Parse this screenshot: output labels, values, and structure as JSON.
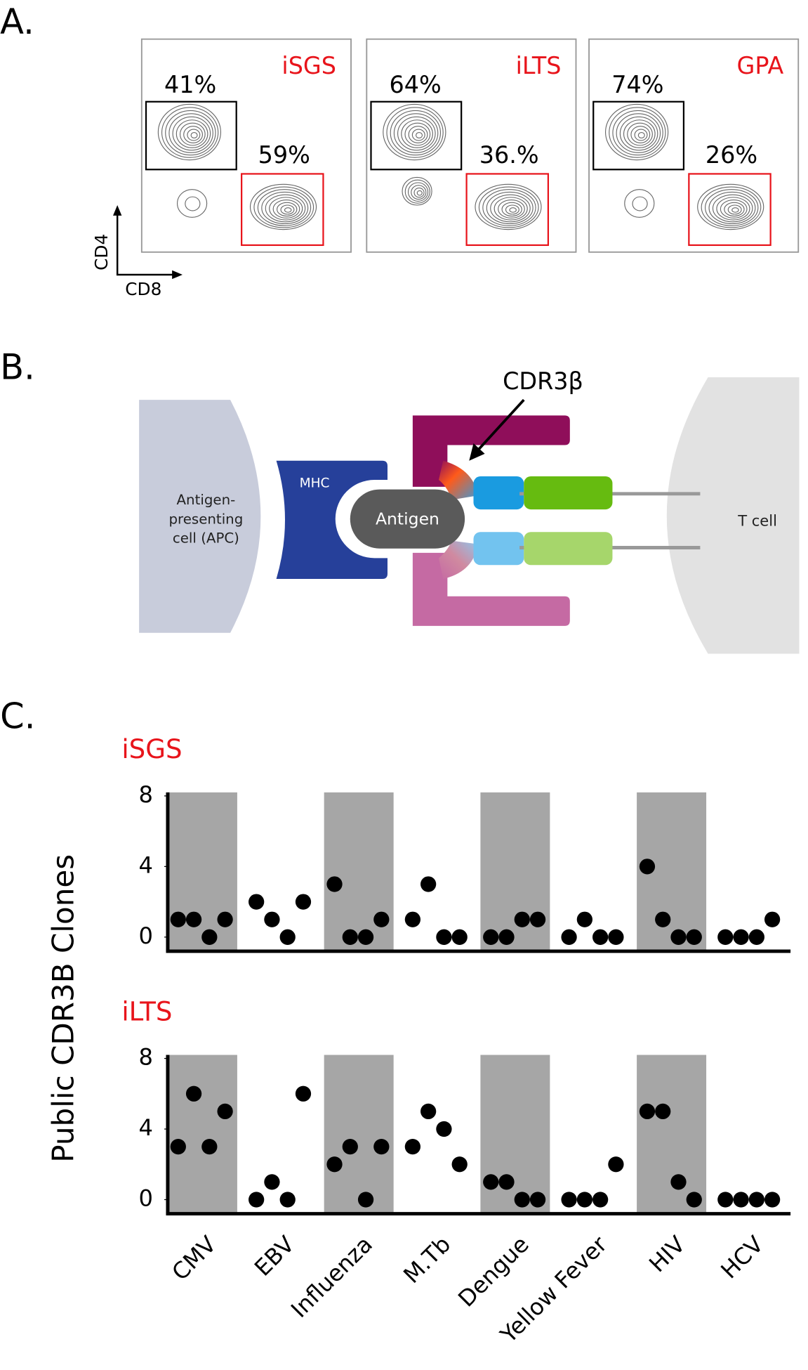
{
  "panel_a": {
    "label": "A.",
    "y_axis": "CD4",
    "x_axis": "CD8",
    "plots": [
      {
        "title": "iSGS",
        "gates": [
          "41%",
          "59%"
        ]
      },
      {
        "title": "iLTS",
        "gates": [
          "64%",
          "36.%"
        ]
      },
      {
        "title": "GPA",
        "gates": [
          "74%",
          "26%"
        ]
      }
    ]
  },
  "panel_b": {
    "label": "B.",
    "apc": [
      "Antigen-",
      "presenting",
      "cell (APC)"
    ],
    "mhc": "MHC",
    "antigen": "Antigen",
    "cdr3": "CDR3β",
    "tcell": "T cell"
  },
  "panel_c": {
    "label": "C.",
    "ylabel": "Public CDR3B Clones",
    "categories": [
      "CMV",
      "EBV",
      "Influenza",
      "M.Tb",
      "Dengue",
      "Yellow Fever",
      "HIV",
      "HCV"
    ]
  },
  "chart_data": [
    {
      "type": "strip",
      "title": "iSGS",
      "color": "#000000",
      "band_color": "#a6a6a6",
      "ylim": [
        -0.8,
        8.2
      ],
      "yticks": [
        0,
        4,
        8
      ],
      "values": [
        [
          1,
          1,
          0,
          1
        ],
        [
          2,
          1,
          0,
          2
        ],
        [
          3,
          0,
          0,
          1
        ],
        [
          1,
          3,
          0,
          0
        ],
        [
          0,
          0,
          1,
          1
        ],
        [
          0,
          1,
          0,
          0
        ],
        [
          4,
          1,
          0,
          0
        ],
        [
          0,
          0,
          0,
          1
        ]
      ]
    },
    {
      "type": "strip",
      "title": "iLTS",
      "color": "#000000",
      "band_color": "#a6a6a6",
      "ylim": [
        -0.8,
        8.2
      ],
      "yticks": [
        0,
        4,
        8
      ],
      "values": [
        [
          3,
          6,
          3,
          5
        ],
        [
          0,
          1,
          0,
          6
        ],
        [
          2,
          3,
          0,
          3
        ],
        [
          3,
          5,
          4,
          2
        ],
        [
          1,
          1,
          0,
          0
        ],
        [
          0,
          0,
          0,
          2
        ],
        [
          5,
          5,
          1,
          0
        ],
        [
          0,
          0,
          0,
          0
        ]
      ]
    }
  ]
}
